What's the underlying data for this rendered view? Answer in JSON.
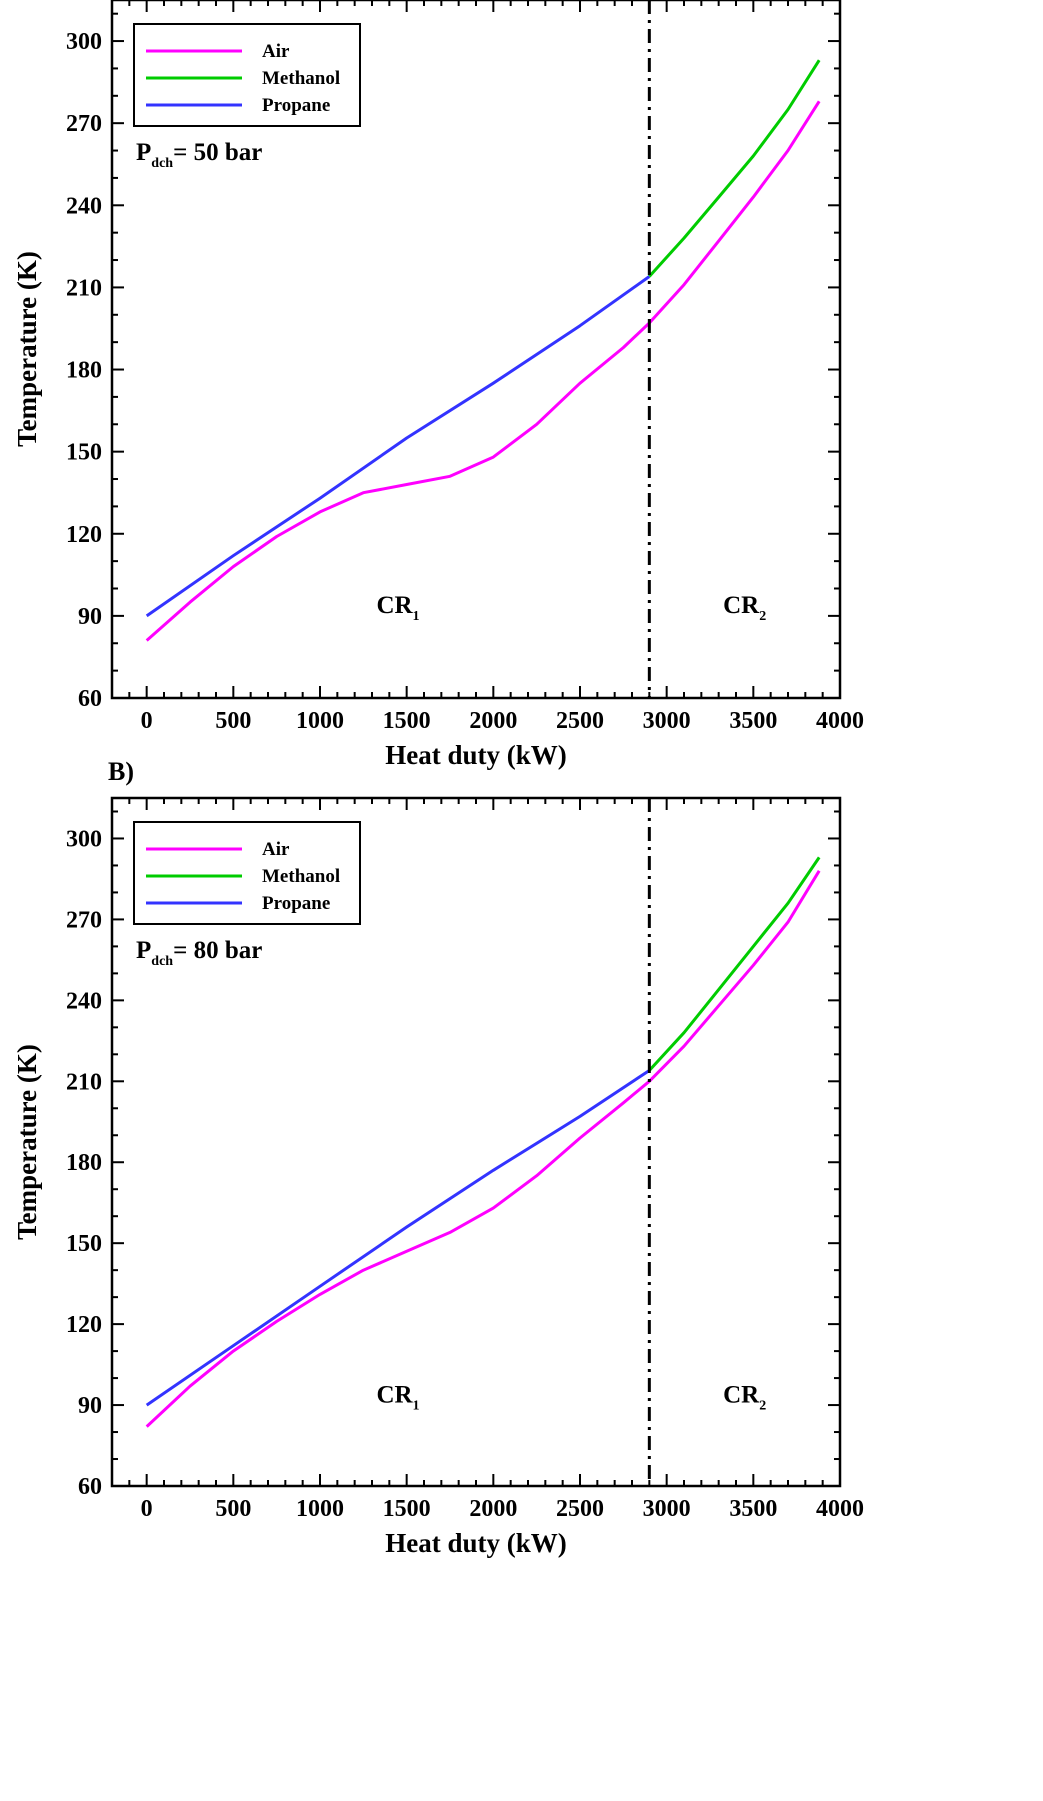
{
  "chart_data": [
    {
      "type": "line",
      "panel_label": "",
      "xlabel": "Heat duty (kW)",
      "ylabel": "Temperature (K)",
      "xlim": [
        -200,
        4000
      ],
      "ylim": [
        60,
        315
      ],
      "xticks": [
        0,
        500,
        1000,
        1500,
        2000,
        2500,
        3000,
        3500,
        4000
      ],
      "yticks": [
        60,
        90,
        120,
        150,
        180,
        210,
        240,
        270,
        300
      ],
      "grid": false,
      "legend_position": "top-left",
      "pressure_label": {
        "main": "P",
        "sub": "dch",
        "rest": "= 50 bar"
      },
      "divider_x": 2900,
      "regions": [
        {
          "main": "CR",
          "sub": "1",
          "x": 1450,
          "y": 91
        },
        {
          "main": "CR",
          "sub": "2",
          "x": 3450,
          "y": 91
        }
      ],
      "series": [
        {
          "name": "Air",
          "color": "#ff00ff",
          "x": [
            0,
            250,
            500,
            750,
            1000,
            1250,
            1500,
            1750,
            2000,
            2250,
            2500,
            2750,
            2900,
            3100,
            3300,
            3500,
            3700,
            3880
          ],
          "y": [
            81,
            95,
            108,
            119,
            128,
            135,
            138,
            141,
            148,
            160,
            175,
            188,
            197,
            211,
            227,
            243,
            260,
            278
          ]
        },
        {
          "name": "Methanol",
          "color": "#00cc00",
          "x": [
            2900,
            3100,
            3300,
            3500,
            3700,
            3880
          ],
          "y": [
            214,
            228,
            243,
            258,
            275,
            293
          ]
        },
        {
          "name": "Propane",
          "color": "#3333ff",
          "x": [
            0,
            500,
            1000,
            1500,
            2000,
            2500,
            2900
          ],
          "y": [
            90,
            112,
            133,
            155,
            175,
            196,
            214
          ]
        }
      ]
    },
    {
      "type": "line",
      "panel_label": "B)",
      "xlabel": "Heat duty (kW)",
      "ylabel": "Temperature (K)",
      "xlim": [
        -200,
        4000
      ],
      "ylim": [
        60,
        315
      ],
      "xticks": [
        0,
        500,
        1000,
        1500,
        2000,
        2500,
        3000,
        3500,
        4000
      ],
      "yticks": [
        60,
        90,
        120,
        150,
        180,
        210,
        240,
        270,
        300
      ],
      "grid": false,
      "legend_position": "top-left",
      "pressure_label": {
        "main": "P",
        "sub": "dch",
        "rest": "= 80 bar"
      },
      "divider_x": 2900,
      "regions": [
        {
          "main": "CR",
          "sub": "1",
          "x": 1450,
          "y": 91
        },
        {
          "main": "CR",
          "sub": "2",
          "x": 3450,
          "y": 91
        }
      ],
      "series": [
        {
          "name": "Air",
          "color": "#ff00ff",
          "x": [
            0,
            250,
            500,
            750,
            1000,
            1250,
            1500,
            1750,
            2000,
            2250,
            2500,
            2750,
            2900,
            3100,
            3300,
            3500,
            3700,
            3880
          ],
          "y": [
            82,
            97,
            110,
            121,
            131,
            140,
            147,
            154,
            163,
            175,
            189,
            202,
            210,
            223,
            238,
            253,
            269,
            288
          ]
        },
        {
          "name": "Methanol",
          "color": "#00cc00",
          "x": [
            2900,
            3100,
            3300,
            3500,
            3700,
            3880
          ],
          "y": [
            214,
            228,
            244,
            260,
            276,
            293
          ]
        },
        {
          "name": "Propane",
          "color": "#3333ff",
          "x": [
            0,
            500,
            1000,
            1500,
            2000,
            2500,
            2900
          ],
          "y": [
            90,
            112,
            134,
            156,
            177,
            197,
            214
          ]
        }
      ]
    }
  ]
}
